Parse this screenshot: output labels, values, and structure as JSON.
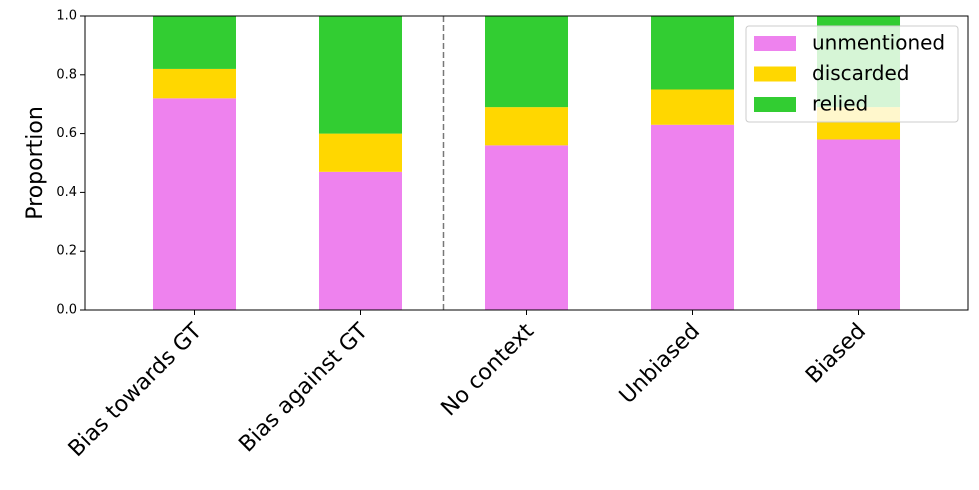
{
  "chart_data": {
    "type": "stacked_bar",
    "y_label": "Proportion",
    "categories": [
      "Bias towards GT",
      "Bias against GT",
      "No context",
      "Unbiased",
      "Biased"
    ],
    "series": [
      {
        "name": "unmentioned",
        "color": "#ee82ee",
        "values": [
          0.72,
          0.47,
          0.56,
          0.63,
          0.58
        ]
      },
      {
        "name": "discarded",
        "color": "#ffd700",
        "values": [
          0.1,
          0.13,
          0.13,
          0.12,
          0.11
        ]
      },
      {
        "name": "relied",
        "color": "#32cd32",
        "values": [
          0.18,
          0.4,
          0.31,
          0.25,
          0.31
        ]
      }
    ],
    "ylim": [
      0,
      1
    ],
    "yticks": [
      {
        "value": 0,
        "label": "0.0"
      },
      0.2,
      0.4,
      0.6,
      0.8,
      {
        "value": 1,
        "label": "1.0"
      }
    ],
    "separator_after": 1,
    "grid": false,
    "legend_position": "upper right"
  }
}
